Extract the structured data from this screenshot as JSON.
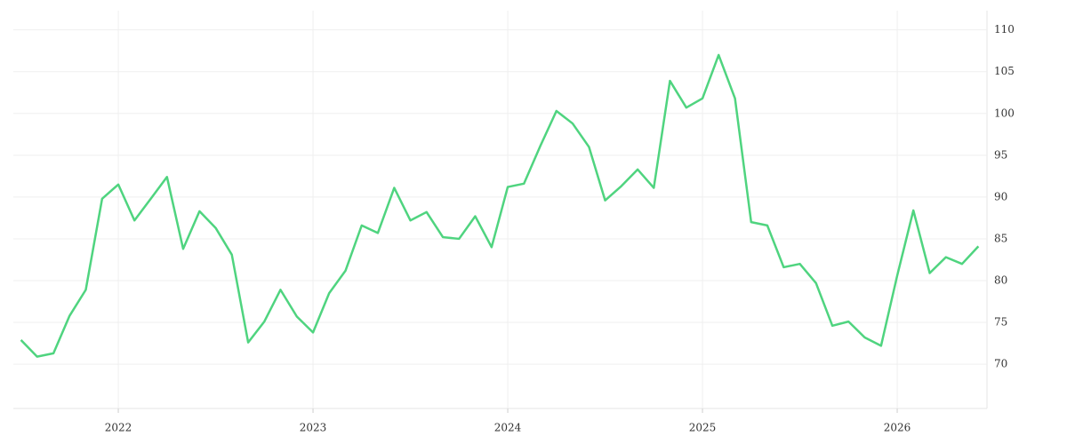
{
  "chart_data": {
    "type": "line",
    "x": [
      2021.5,
      2021.583,
      2021.667,
      2021.75,
      2021.833,
      2021.917,
      2022,
      2022.083,
      2022.167,
      2022.25,
      2022.333,
      2022.417,
      2022.5,
      2022.583,
      2022.667,
      2022.75,
      2022.833,
      2022.917,
      2023,
      2023.083,
      2023.167,
      2023.25,
      2023.333,
      2023.417,
      2023.5,
      2023.583,
      2023.667,
      2023.75,
      2023.833,
      2023.917,
      2024,
      2024.083,
      2024.167,
      2024.25,
      2024.333,
      2024.417,
      2024.5,
      2024.583,
      2024.667,
      2024.75,
      2024.833,
      2024.917,
      2025,
      2025.083,
      2025.167,
      2025.25,
      2025.333,
      2025.417,
      2025.5,
      2025.583,
      2025.667,
      2025.75,
      2025.833,
      2025.917,
      2026,
      2026.083,
      2026.167,
      2026.25,
      2026.333,
      2026.417
    ],
    "series": [
      {
        "color": "#4fd47f",
        "values": [
          72.9,
          70.9,
          71.3,
          75.8,
          78.9,
          89.8,
          91.5,
          87.2,
          89.8,
          92.4,
          83.8,
          88.3,
          86.3,
          83.1,
          72.6,
          75.1,
          78.9,
          75.7,
          73.8,
          78.5,
          81.2,
          86.6,
          85.7,
          91.1,
          87.2,
          88.2,
          85.2,
          85.0,
          87.7,
          84.0,
          91.2,
          91.6,
          96.1,
          100.3,
          98.8,
          96.0,
          89.6,
          91.3,
          93.3,
          91.1,
          103.9,
          100.7,
          101.8,
          107.0,
          101.8,
          87.0,
          86.6,
          81.6,
          82.0,
          79.7,
          74.6,
          75.1,
          73.2,
          72.2,
          80.6,
          88.4,
          80.9,
          82.8,
          82.0,
          84.1
        ]
      }
    ],
    "xlim": [
      2021.461,
      2026.461
    ],
    "xticks": [
      2022,
      2023,
      2024,
      2025,
      2026
    ],
    "ylim": [
      64.7,
      112.3
    ],
    "yticks": [
      70,
      75,
      80,
      85,
      90,
      95,
      100,
      105,
      110
    ],
    "grid": true
  }
}
